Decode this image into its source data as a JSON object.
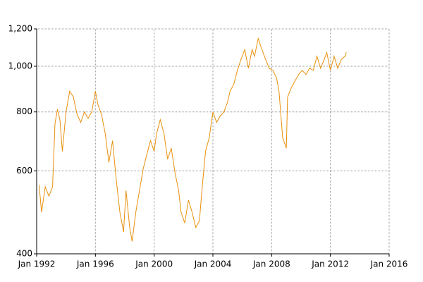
{
  "chart_data": {
    "type": "line",
    "x": [
      "1992-03",
      "1992-05",
      "1992-08",
      "1992-11",
      "1993-02",
      "1993-04",
      "1993-06",
      "1993-08",
      "1993-10",
      "1994-01",
      "1994-04",
      "1994-07",
      "1994-10",
      "1995-01",
      "1995-04",
      "1995-07",
      "1995-10",
      "1996-01",
      "1996-03",
      "1996-06",
      "1996-09",
      "1996-12",
      "1997-03",
      "1997-06",
      "1997-09",
      "1997-12",
      "1998-02",
      "1998-05",
      "1998-07",
      "1998-10",
      "1999-01",
      "1999-04",
      "1999-07",
      "1999-10",
      "2000-01",
      "2000-03",
      "2000-06",
      "2000-09",
      "2000-12",
      "2001-03",
      "2001-06",
      "2001-09",
      "2001-11",
      "2002-02",
      "2002-05",
      "2002-08",
      "2002-11",
      "2003-02",
      "2003-04",
      "2003-07",
      "2003-10",
      "2004-01",
      "2004-04",
      "2004-07",
      "2004-10",
      "2005-01",
      "2005-03",
      "2005-06",
      "2005-09",
      "2005-12",
      "2006-03",
      "2006-06",
      "2006-09",
      "2006-11",
      "2007-02",
      "2007-05",
      "2007-08",
      "2007-11",
      "2008-02",
      "2008-05",
      "2008-07",
      "2008-10",
      "2009-01",
      "2009-02",
      "2009-05",
      "2009-08",
      "2009-11",
      "2010-02",
      "2010-05",
      "2010-08",
      "2010-11",
      "2011-02",
      "2011-05",
      "2011-08",
      "2011-10",
      "2012-01",
      "2012-04",
      "2012-07",
      "2012-10",
      "2013-01",
      "2013-02"
    ],
    "series": [
      {
        "color": "#e8900c",
        "values": [
          560,
          490,
          555,
          530,
          555,
          757,
          810,
          770,
          660,
          800,
          885,
          860,
          790,
          760,
          800,
          775,
          800,
          885,
          830,
          790,
          720,
          625,
          695,
          575,
          490,
          445,
          545,
          455,
          425,
          490,
          545,
          605,
          650,
          695,
          660,
          720,
          770,
          720,
          635,
          670,
          595,
          545,
          490,
          465,
          520,
          490,
          455,
          470,
          545,
          660,
          705,
          800,
          760,
          785,
          800,
          840,
          885,
          915,
          980,
          1035,
          1085,
          990,
          1085,
          1050,
          1145,
          1085,
          1035,
          990,
          980,
          945,
          885,
          705,
          670,
          860,
          900,
          930,
          960,
          980,
          960,
          990,
          980,
          1050,
          990,
          1035,
          1070,
          980,
          1050,
          990,
          1035,
          1050,
          1070
        ]
      }
    ],
    "xlim": [
      "1992-01",
      "2016-01"
    ],
    "xticks": [
      {
        "value": "1992-01",
        "label": "Jan 1992"
      },
      {
        "value": "1996-01",
        "label": "Jan 1996"
      },
      {
        "value": "2000-01",
        "label": "Jan 2000"
      },
      {
        "value": "2004-01",
        "label": "Jan 2004"
      },
      {
        "value": "2008-01",
        "label": "Jan 2008"
      },
      {
        "value": "2012-01",
        "label": "Jan 2012"
      },
      {
        "value": "2016-01",
        "label": "Jan 2016"
      }
    ],
    "ylim": [
      400,
      1200
    ],
    "yticks": [
      400,
      600,
      800,
      {
        "value": 1000,
        "label": "1,000"
      },
      {
        "value": 1200,
        "label": "1,200"
      }
    ],
    "log_y": true,
    "grid": true
  }
}
